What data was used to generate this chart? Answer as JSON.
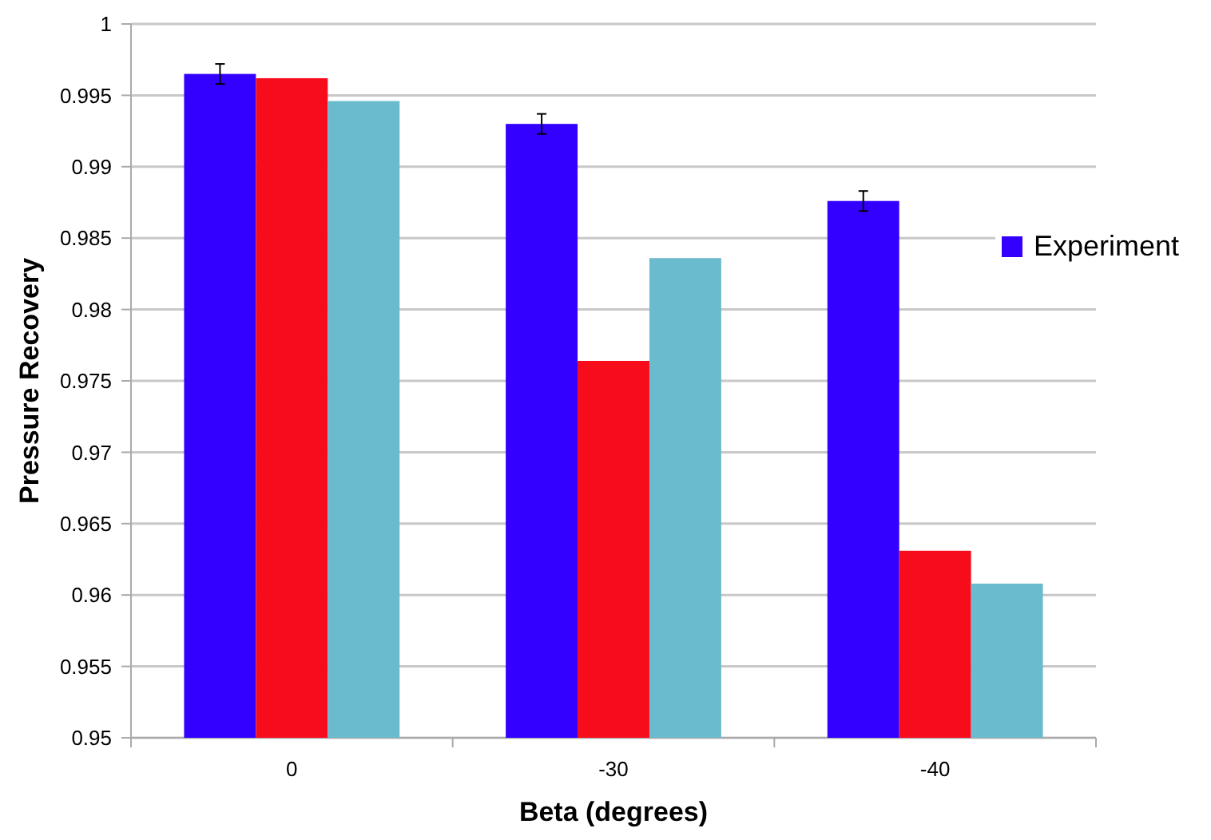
{
  "chart_data": {
    "type": "bar",
    "xlabel": "Beta (degrees)",
    "ylabel": "Pressure Recovery",
    "categories": [
      "0",
      "-30",
      "-40"
    ],
    "series": [
      {
        "name": "Experiment",
        "color": "#3300ff",
        "values": [
          0.9965,
          0.993,
          0.9876
        ],
        "errors": [
          0.0007,
          0.0007,
          0.0007
        ]
      },
      {
        "color": "#f70c1c",
        "values": [
          0.9962,
          0.9764,
          0.9631
        ]
      },
      {
        "color": "#6bbbcf",
        "values": [
          0.9946,
          0.9836,
          0.9608
        ]
      }
    ],
    "ylim": [
      0.95,
      1
    ],
    "yticks": [
      0.95,
      0.955,
      0.96,
      0.965,
      0.97,
      0.975,
      0.98,
      0.985,
      0.99,
      0.995,
      1
    ],
    "grid": "y",
    "legend": "right"
  }
}
